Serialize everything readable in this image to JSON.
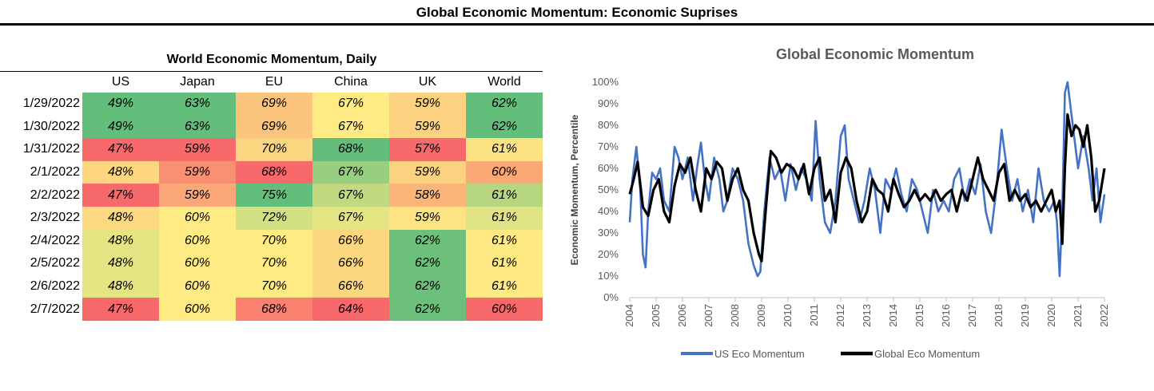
{
  "page": {
    "title": "Global Economic Momentum: Economic Suprises"
  },
  "table": {
    "title": "World Economic Momentum, Daily",
    "columns": [
      "US",
      "Japan",
      "EU",
      "China",
      "UK",
      "World"
    ],
    "rows": [
      {
        "date": "1/29/2022",
        "cells": [
          "49%",
          "63%",
          "69%",
          "67%",
          "59%",
          "62%"
        ]
      },
      {
        "date": "1/30/2022",
        "cells": [
          "49%",
          "63%",
          "69%",
          "67%",
          "59%",
          "62%"
        ]
      },
      {
        "date": "1/31/2022",
        "cells": [
          "47%",
          "59%",
          "70%",
          "68%",
          "57%",
          "61%"
        ]
      },
      {
        "date": "2/1/2022",
        "cells": [
          "48%",
          "59%",
          "68%",
          "67%",
          "59%",
          "60%"
        ]
      },
      {
        "date": "2/2/2022",
        "cells": [
          "47%",
          "59%",
          "75%",
          "67%",
          "58%",
          "61%"
        ]
      },
      {
        "date": "2/3/2022",
        "cells": [
          "48%",
          "60%",
          "72%",
          "67%",
          "59%",
          "61%"
        ]
      },
      {
        "date": "2/4/2022",
        "cells": [
          "48%",
          "60%",
          "70%",
          "66%",
          "62%",
          "61%"
        ]
      },
      {
        "date": "2/5/2022",
        "cells": [
          "48%",
          "60%",
          "70%",
          "66%",
          "62%",
          "61%"
        ]
      },
      {
        "date": "2/6/2022",
        "cells": [
          "48%",
          "60%",
          "70%",
          "66%",
          "62%",
          "61%"
        ]
      },
      {
        "date": "2/7/2022",
        "cells": [
          "47%",
          "60%",
          "68%",
          "64%",
          "62%",
          "60%"
        ]
      }
    ],
    "cell_colors": [
      [
        "#63be7b",
        "#63be7b",
        "#fbc57d",
        "#ffeb84",
        "#fcd17f",
        "#63be7b"
      ],
      [
        "#63be7b",
        "#63be7b",
        "#fbc57d",
        "#ffeb84",
        "#fcd17f",
        "#63be7b"
      ],
      [
        "#f8696b",
        "#f8696b",
        "#fbd580",
        "#63be7b",
        "#f8696b",
        "#fde282"
      ],
      [
        "#fed680",
        "#fa9073",
        "#f8696b",
        "#98ce7f",
        "#fcd17f",
        "#fba877"
      ],
      [
        "#f8696b",
        "#fba777",
        "#63be7b",
        "#c1da81",
        "#fcb579",
        "#b6d680"
      ],
      [
        "#fcd880",
        "#ffeb84",
        "#d3e082",
        "#e3e683",
        "#fde382",
        "#e0e383"
      ],
      [
        "#e4e483",
        "#ffeb84",
        "#ffeb84",
        "#fdd680",
        "#6dc07c",
        "#fee983"
      ],
      [
        "#e4e483",
        "#ffeb84",
        "#ffeb84",
        "#fdd680",
        "#6dc07c",
        "#fee983"
      ],
      [
        "#e4e483",
        "#ffeb84",
        "#ffeb84",
        "#fdd680",
        "#6dc07c",
        "#fee983"
      ],
      [
        "#f8696b",
        "#ffeb84",
        "#fa8070",
        "#f8696b",
        "#6dc07c",
        "#f8696b"
      ]
    ]
  },
  "chart_data": {
    "type": "line",
    "title": "Global Economic Momentum",
    "ylabel": "Economic Momentum, Percentile",
    "xlabel": "",
    "ylim": [
      0,
      100
    ],
    "y_ticks": [
      "0%",
      "10%",
      "20%",
      "30%",
      "40%",
      "50%",
      "60%",
      "70%",
      "80%",
      "90%",
      "100%"
    ],
    "xlim": [
      2004,
      2022
    ],
    "x_ticks": [
      "2004",
      "2005",
      "2006",
      "2007",
      "2008",
      "2009",
      "2010",
      "2011",
      "2012",
      "2013",
      "2014",
      "2015",
      "2016",
      "2017",
      "2018",
      "2019",
      "2020",
      "2021",
      "2022"
    ],
    "grid": false,
    "legend_position": "bottom",
    "series": [
      {
        "name": "US Eco Momentum",
        "color": "#4472c4",
        "x": [
          2004.0,
          2004.1,
          2004.25,
          2004.4,
          2004.5,
          2004.6,
          2004.7,
          2004.85,
          2005.0,
          2005.15,
          2005.3,
          2005.5,
          2005.7,
          2005.85,
          2006.0,
          2006.2,
          2006.4,
          2006.55,
          2006.7,
          2006.85,
          2007.0,
          2007.2,
          2007.4,
          2007.55,
          2007.7,
          2007.9,
          2008.1,
          2008.3,
          2008.5,
          2008.7,
          2008.85,
          2008.95,
          2009.1,
          2009.3,
          2009.5,
          2009.7,
          2009.9,
          2010.1,
          2010.3,
          2010.5,
          2010.7,
          2010.9,
          2011.05,
          2011.2,
          2011.4,
          2011.6,
          2011.8,
          2012.0,
          2012.15,
          2012.3,
          2012.5,
          2012.7,
          2012.9,
          2013.1,
          2013.3,
          2013.5,
          2013.7,
          2013.9,
          2014.1,
          2014.3,
          2014.5,
          2014.7,
          2014.9,
          2015.1,
          2015.3,
          2015.5,
          2015.7,
          2015.9,
          2016.1,
          2016.3,
          2016.5,
          2016.7,
          2016.9,
          2017.1,
          2017.3,
          2017.5,
          2017.7,
          2017.9,
          2018.1,
          2018.3,
          2018.5,
          2018.7,
          2018.9,
          2019.1,
          2019.3,
          2019.5,
          2019.7,
          2019.9,
          2020.1,
          2020.2,
          2020.3,
          2020.4,
          2020.5,
          2020.6,
          2020.7,
          2020.85,
          2021.0,
          2021.2,
          2021.4,
          2021.55,
          2021.7,
          2021.85,
          2022.0
        ],
        "values": [
          35,
          55,
          70,
          50,
          20,
          14,
          40,
          58,
          55,
          60,
          45,
          40,
          70,
          65,
          55,
          65,
          45,
          60,
          72,
          55,
          45,
          65,
          55,
          40,
          45,
          60,
          55,
          45,
          25,
          15,
          10,
          12,
          40,
          65,
          55,
          60,
          45,
          62,
          50,
          60,
          55,
          45,
          82,
          55,
          35,
          30,
          45,
          75,
          80,
          55,
          45,
          35,
          45,
          60,
          50,
          30,
          55,
          50,
          60,
          48,
          40,
          55,
          50,
          40,
          30,
          50,
          40,
          45,
          40,
          55,
          60,
          45,
          55,
          48,
          62,
          40,
          30,
          50,
          78,
          60,
          45,
          55,
          40,
          50,
          35,
          60,
          45,
          40,
          45,
          35,
          10,
          40,
          95,
          100,
          90,
          75,
          60,
          75,
          60,
          45,
          60,
          35,
          48
        ]
      },
      {
        "name": "Global Eco Momentum",
        "color": "#000000",
        "x": [
          2004.0,
          2004.15,
          2004.3,
          2004.5,
          2004.7,
          2004.9,
          2005.1,
          2005.3,
          2005.5,
          2005.7,
          2005.9,
          2006.1,
          2006.3,
          2006.5,
          2006.7,
          2006.9,
          2007.1,
          2007.3,
          2007.5,
          2007.7,
          2007.9,
          2008.1,
          2008.3,
          2008.5,
          2008.7,
          2008.9,
          2009.0,
          2009.15,
          2009.35,
          2009.55,
          2009.75,
          2009.95,
          2010.2,
          2010.4,
          2010.6,
          2010.8,
          2011.0,
          2011.2,
          2011.4,
          2011.6,
          2011.8,
          2012.0,
          2012.2,
          2012.4,
          2012.6,
          2012.8,
          2013.0,
          2013.2,
          2013.4,
          2013.6,
          2013.8,
          2014.0,
          2014.2,
          2014.4,
          2014.6,
          2014.8,
          2015.0,
          2015.2,
          2015.4,
          2015.6,
          2015.8,
          2016.0,
          2016.2,
          2016.4,
          2016.6,
          2016.8,
          2017.0,
          2017.2,
          2017.4,
          2017.6,
          2017.8,
          2018.0,
          2018.2,
          2018.4,
          2018.6,
          2018.8,
          2019.0,
          2019.2,
          2019.4,
          2019.6,
          2019.8,
          2020.0,
          2020.15,
          2020.3,
          2020.4,
          2020.5,
          2020.6,
          2020.75,
          2020.9,
          2021.05,
          2021.2,
          2021.35,
          2021.5,
          2021.65,
          2021.8,
          2022.0
        ],
        "values": [
          48,
          55,
          63,
          42,
          38,
          50,
          55,
          40,
          35,
          52,
          62,
          58,
          65,
          50,
          40,
          60,
          55,
          63,
          60,
          45,
          55,
          60,
          50,
          45,
          30,
          20,
          17,
          40,
          68,
          65,
          58,
          62,
          60,
          55,
          62,
          48,
          60,
          65,
          45,
          50,
          35,
          58,
          65,
          60,
          45,
          35,
          40,
          55,
          50,
          48,
          40,
          55,
          48,
          42,
          45,
          50,
          45,
          48,
          45,
          50,
          45,
          48,
          50,
          40,
          50,
          45,
          55,
          65,
          55,
          50,
          45,
          58,
          62,
          45,
          50,
          45,
          48,
          42,
          45,
          40,
          45,
          50,
          40,
          45,
          25,
          60,
          85,
          75,
          80,
          78,
          70,
          80,
          65,
          40,
          45,
          60
        ]
      }
    ]
  }
}
